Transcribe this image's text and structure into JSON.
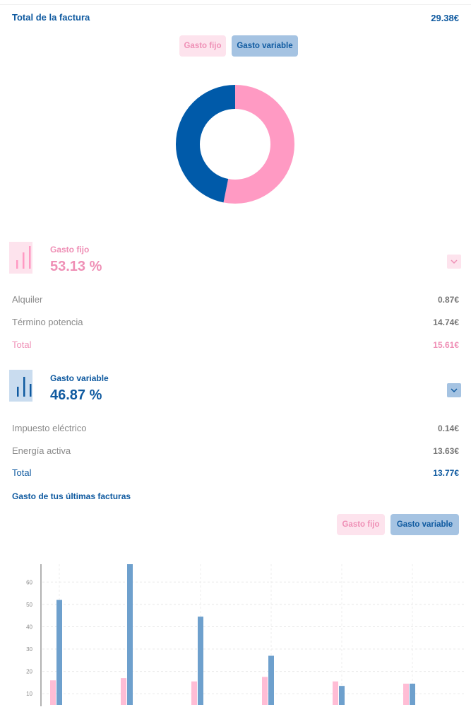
{
  "invoice": {
    "total_label": "Total de la factura",
    "total_value": "29.38€"
  },
  "toggles": {
    "fijo": "Gasto fijo",
    "variable": "Gasto variable"
  },
  "colors": {
    "fijo": "#ff9ac3",
    "variable": "#005aa9",
    "fijo_bar": "#ffbdd5",
    "variable_bar": "#6ea0cd"
  },
  "donut": {
    "fijo_pct": 53.13,
    "variable_pct": 46.87
  },
  "fijo": {
    "name": "Gasto fijo",
    "percent": "53.13 %",
    "rows": [
      {
        "label": "Alquiler",
        "value": "0.87€"
      },
      {
        "label": "Término potencia",
        "value": "14.74€"
      },
      {
        "label": "Total",
        "value": "15.61€"
      }
    ]
  },
  "variable": {
    "name": "Gasto variable",
    "percent": "46.87 %",
    "rows": [
      {
        "label": "Impuesto eléctrico",
        "value": "0.14€"
      },
      {
        "label": "Energía activa",
        "value": "13.63€"
      },
      {
        "label": "Total",
        "value": "13.77€"
      }
    ]
  },
  "history": {
    "title": "Gasto de tus últimas facturas",
    "toggle_fijo": "Gasto fijo",
    "toggle_variable": "Gasto variable"
  },
  "chart_data": {
    "type": "bar",
    "y_ticks": [
      10,
      20,
      30,
      40,
      50,
      60
    ],
    "ylim": [
      5,
      68
    ],
    "grid": true,
    "series": [
      {
        "values": [
          16,
          17,
          15.5,
          17.5,
          15.5,
          14.5
        ]
      },
      {
        "values": [
          52,
          68,
          44.5,
          27,
          13.5,
          14.5
        ]
      }
    ]
  }
}
